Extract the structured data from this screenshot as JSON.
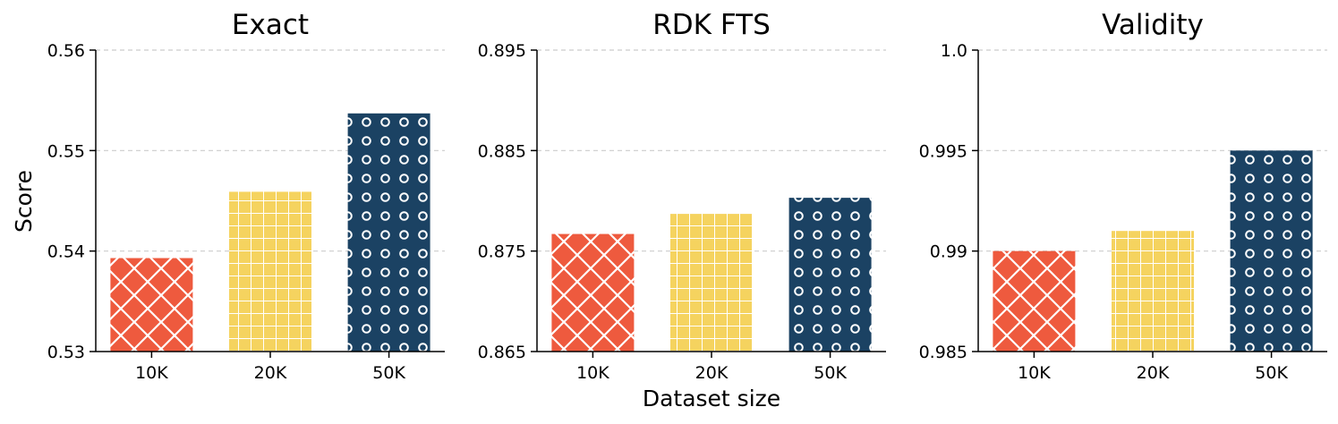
{
  "figure": {
    "xlabel": "Dataset size",
    "ylabel": "Score"
  },
  "colors": {
    "10K": "#ee5a3e",
    "20K": "#f5d35f",
    "50K": "#1b4263",
    "hatch": "#ffffff",
    "grid": "#cccccc"
  },
  "patterns": {
    "10K": "diagonal-cross",
    "20K": "grid",
    "50K": "circles"
  },
  "chart_data": [
    {
      "type": "bar",
      "title": "Exact",
      "categories": [
        "10K",
        "20K",
        "50K"
      ],
      "values": [
        0.5393,
        0.5459,
        0.5537
      ],
      "ylim": [
        0.53,
        0.56
      ],
      "yticks": [
        "0.53",
        "0.54",
        "0.55",
        "0.56"
      ],
      "grid": "horizontal-dashed"
    },
    {
      "type": "bar",
      "title": "RDK FTS",
      "categories": [
        "10K",
        "20K",
        "50K"
      ],
      "values": [
        0.8767,
        0.8787,
        0.8803
      ],
      "ylim": [
        0.865,
        0.895
      ],
      "yticks": [
        "0.865",
        "0.875",
        "0.885",
        "0.895"
      ],
      "grid": "horizontal-dashed"
    },
    {
      "type": "bar",
      "title": "Validity",
      "categories": [
        "10K",
        "20K",
        "50K"
      ],
      "values": [
        0.99,
        0.991,
        0.995
      ],
      "ylim": [
        0.985,
        1.0
      ],
      "yticks": [
        "0.985",
        "0.99",
        "0.995",
        "1.0"
      ],
      "grid": "horizontal-dashed"
    }
  ]
}
